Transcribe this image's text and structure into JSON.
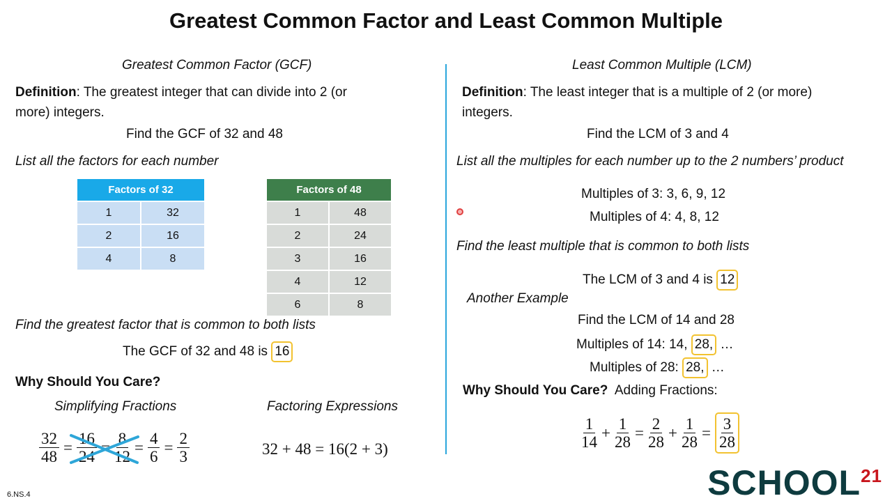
{
  "title": "Greatest Common Factor and Least Common Multiple",
  "gcf": {
    "heading": "Greatest Common Factor (GCF)",
    "def_label": "Definition",
    "def_text": ":  The greatest integer that can divide into 2 (or",
    "def_text2": "more) integers.",
    "prompt": "Find the GCF of 32 and 48",
    "list_instr": "List all the factors for each number",
    "table32": {
      "header": "Factors of 32",
      "rows": [
        [
          "1",
          "32"
        ],
        [
          "2",
          "16"
        ],
        [
          "4",
          "8"
        ]
      ]
    },
    "table48": {
      "header": "Factors of 48",
      "rows": [
        [
          "1",
          "48"
        ],
        [
          "2",
          "24"
        ],
        [
          "3",
          "16"
        ],
        [
          "4",
          "12"
        ],
        [
          "6",
          "8"
        ]
      ]
    },
    "find_instr": "Find the greatest factor that is common to both lists",
    "answer_text": "The GCF of 32 and 48 is",
    "answer": "16",
    "why": "Why Should You Care?",
    "simplify": "Simplifying Fractions",
    "factoring": "Factoring Expressions",
    "fractions": [
      [
        "32",
        "48"
      ],
      [
        "16",
        "24"
      ],
      [
        "8",
        "12"
      ],
      [
        "4",
        "6"
      ],
      [
        "2",
        "3"
      ]
    ],
    "factor_expr": "32 + 48 = 16(2 + 3)"
  },
  "lcm": {
    "heading": "Least Common Multiple (LCM)",
    "def_label": "Definition",
    "def_text": ":  The least integer that is a multiple of 2 (or more)",
    "def_text2": "integers.",
    "prompt": "Find the LCM of 3 and 4",
    "list_instr": "List all the multiples for each number up to the 2 numbers’ product",
    "mult3": "Multiples of 3:  3, 6, 9, 12",
    "mult4": "Multiples of 4:  4, 8, 12",
    "find_instr": "Find the least multiple that is common to both lists",
    "answer_text": "The LCM of 3 and 4 is",
    "answer": "12",
    "another": "Another Example",
    "prompt2": "Find the LCM of 14 and 28",
    "mult14_label": "Multiples of 14:  14,",
    "mult14_box": "28,",
    "mult14_rest": "…",
    "mult28_label": "Multiples of 28:",
    "mult28_box": "28,",
    "mult28_rest": "…",
    "why": "Why Should You Care?",
    "adding": "Adding Fractions:",
    "fractions": [
      [
        "1",
        "14"
      ],
      [
        "1",
        "28"
      ],
      [
        "2",
        "28"
      ],
      [
        "1",
        "28"
      ],
      [
        "3",
        "28"
      ]
    ],
    "ops": [
      "+",
      "=",
      "+",
      "="
    ]
  },
  "footer": "6.NS.4",
  "logo": {
    "text": "SCHOOL",
    "sup": "21"
  }
}
